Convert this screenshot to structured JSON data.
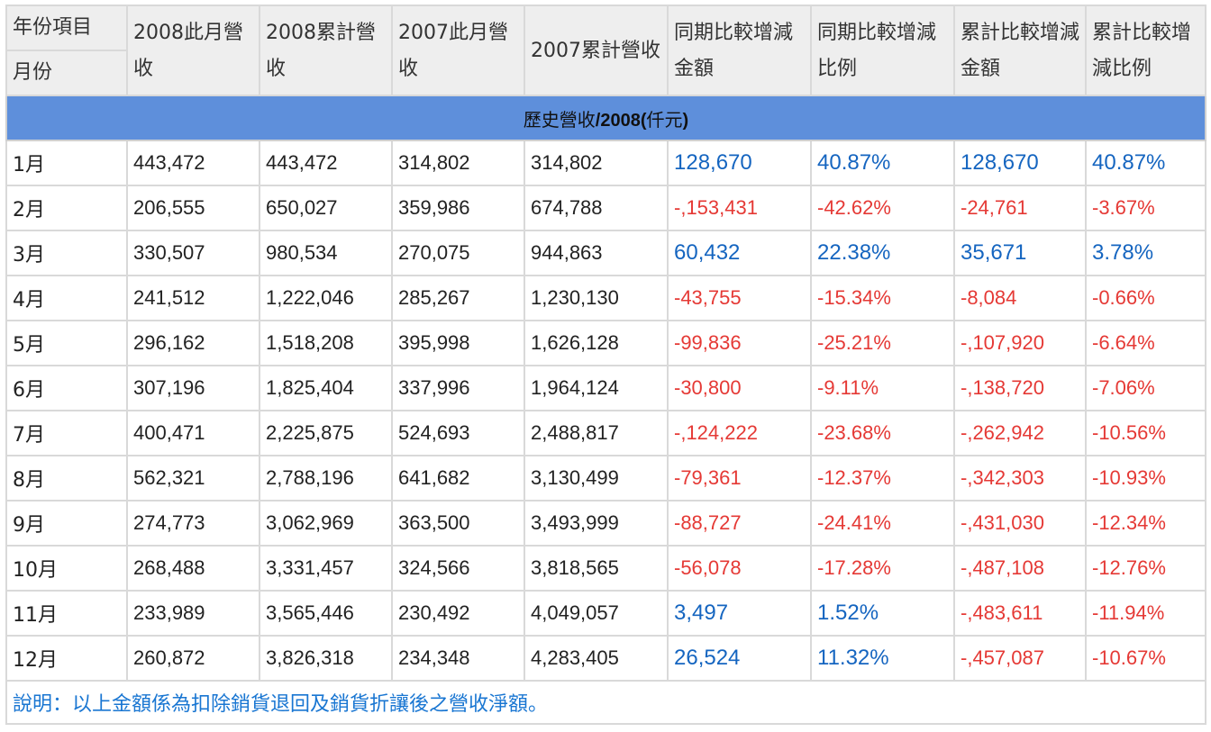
{
  "title": {
    "prefix": "歷史營收",
    "bold": "/2008(",
    "cjk": "仟元",
    "suffix": ")"
  },
  "header": {
    "corner_top": "年份項目",
    "corner_bottom": "月份",
    "columns": [
      "2008此月營收",
      "2008累計營收",
      "2007此月營收",
      "2007累計營收",
      "同期比較增減金額",
      "同期比較增減比例",
      "累計比較增減金額",
      "累計比較增減比例"
    ]
  },
  "rows": [
    {
      "month": "1月",
      "c1": "443,472",
      "c2": "443,472",
      "c3": "314,802",
      "c4": "314,802",
      "c5": "128,670",
      "c6": "40.87%",
      "c7": "128,670",
      "c8": "40.87%"
    },
    {
      "month": "2月",
      "c1": "206,555",
      "c2": "650,027",
      "c3": "359,986",
      "c4": "674,788",
      "c5": "-,153,431",
      "c6": "-42.62%",
      "c7": "-24,761",
      "c8": "-3.67%"
    },
    {
      "month": "3月",
      "c1": "330,507",
      "c2": "980,534",
      "c3": "270,075",
      "c4": "944,863",
      "c5": "60,432",
      "c6": "22.38%",
      "c7": "35,671",
      "c8": "3.78%"
    },
    {
      "month": "4月",
      "c1": "241,512",
      "c2": "1,222,046",
      "c3": "285,267",
      "c4": "1,230,130",
      "c5": "-43,755",
      "c6": "-15.34%",
      "c7": "-8,084",
      "c8": "-0.66%"
    },
    {
      "month": "5月",
      "c1": "296,162",
      "c2": "1,518,208",
      "c3": "395,998",
      "c4": "1,626,128",
      "c5": "-99,836",
      "c6": "-25.21%",
      "c7": "-,107,920",
      "c8": "-6.64%"
    },
    {
      "month": "6月",
      "c1": "307,196",
      "c2": "1,825,404",
      "c3": "337,996",
      "c4": "1,964,124",
      "c5": "-30,800",
      "c6": "-9.11%",
      "c7": "-,138,720",
      "c8": "-7.06%"
    },
    {
      "month": "7月",
      "c1": "400,471",
      "c2": "2,225,875",
      "c3": "524,693",
      "c4": "2,488,817",
      "c5": "-,124,222",
      "c6": "-23.68%",
      "c7": "-,262,942",
      "c8": "-10.56%"
    },
    {
      "month": "8月",
      "c1": "562,321",
      "c2": "2,788,196",
      "c3": "641,682",
      "c4": "3,130,499",
      "c5": "-79,361",
      "c6": "-12.37%",
      "c7": "-,342,303",
      "c8": "-10.93%"
    },
    {
      "month": "9月",
      "c1": "274,773",
      "c2": "3,062,969",
      "c3": "363,500",
      "c4": "3,493,999",
      "c5": "-88,727",
      "c6": "-24.41%",
      "c7": "-,431,030",
      "c8": "-12.34%"
    },
    {
      "month": "10月",
      "c1": "268,488",
      "c2": "3,331,457",
      "c3": "324,566",
      "c4": "3,818,565",
      "c5": "-56,078",
      "c6": "-17.28%",
      "c7": "-,487,108",
      "c8": "-12.76%"
    },
    {
      "month": "11月",
      "c1": "233,989",
      "c2": "3,565,446",
      "c3": "230,492",
      "c4": "4,049,057",
      "c5": "3,497",
      "c6": "1.52%",
      "c7": "-,483,611",
      "c8": "-11.94%"
    },
    {
      "month": "12月",
      "c1": "260,872",
      "c2": "3,826,318",
      "c3": "234,348",
      "c4": "4,283,405",
      "c5": "26,524",
      "c6": "11.32%",
      "c7": "-,457,087",
      "c8": "-10.67%"
    }
  ],
  "note": "說明：以上金額係為扣除銷貨退回及銷貨折讓後之營收淨額。",
  "colors": {
    "title_bg": "#5e8fdb",
    "header_bg": "#eeeeee",
    "positive": "#1565c0",
    "negative": "#e53935",
    "note": "#1976d2"
  }
}
